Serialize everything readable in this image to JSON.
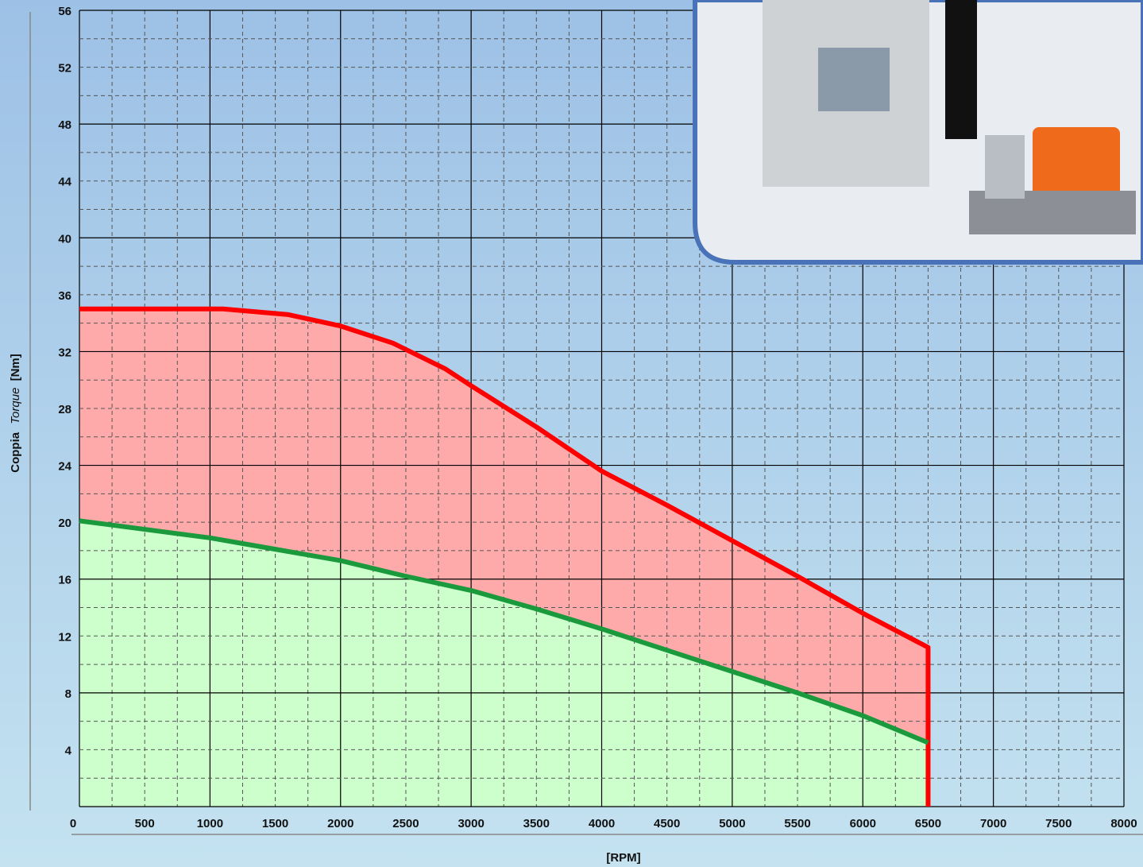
{
  "chart_data": {
    "type": "area",
    "y_label_parts": [
      "Coppia",
      "Torque",
      "[Nm]"
    ],
    "x_label": "[RPM]",
    "xlim": [
      0,
      8000
    ],
    "ylim": [
      0,
      56
    ],
    "xticks": [
      0,
      500,
      1000,
      1500,
      2000,
      2500,
      3000,
      3500,
      4000,
      4500,
      5000,
      5500,
      6000,
      6500,
      7000,
      7500,
      8000
    ],
    "yticks": [
      4,
      8,
      12,
      16,
      20,
      24,
      28,
      32,
      36,
      40,
      44,
      48,
      52,
      56
    ],
    "grid": true,
    "series": [
      {
        "name": null,
        "color": "#ff0000",
        "fill": "#ffaaaa",
        "x": [
          0,
          1100,
          1600,
          2000,
          2400,
          2800,
          3000,
          3500,
          4000,
          4500,
          5000,
          5500,
          6000,
          6500,
          6500
        ],
        "values": [
          35,
          35,
          34.6,
          33.8,
          32.6,
          30.8,
          29.6,
          26.7,
          23.6,
          21.2,
          18.7,
          16.2,
          13.6,
          11.2,
          0
        ]
      },
      {
        "name": null,
        "color": "#1a9a3c",
        "fill": "#ccffcc",
        "x": [
          0,
          1000,
          1500,
          2000,
          2500,
          3000,
          3500,
          4000,
          4500,
          5000,
          5500,
          6000,
          6500
        ],
        "values": [
          20.1,
          18.9,
          18.1,
          17.3,
          16.2,
          15.2,
          13.9,
          12.5,
          11.0,
          9.5,
          8.0,
          6.4,
          4.5
        ]
      }
    ]
  }
}
